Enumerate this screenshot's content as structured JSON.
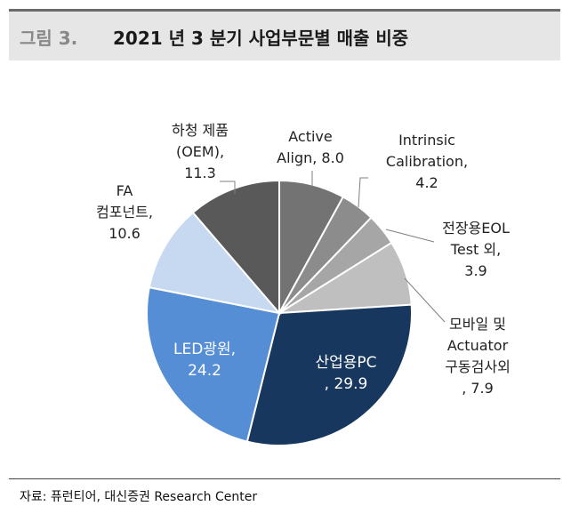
{
  "header": {
    "prefix": "그림 3.",
    "title": "2021 년 3 분기 사업부문별 매출 비중"
  },
  "source": "자료: 퓨런티어, 대신증권 Research Center",
  "chart_data": {
    "type": "pie",
    "title": "2021 년 3 분기 사업부문별 매출 비중",
    "slices": [
      {
        "name": "Active Align",
        "value": 8.0,
        "color": "#737373",
        "lines": [
          "Active",
          "Align, 8.0"
        ]
      },
      {
        "name": "Intrinsic Calibration",
        "value": 4.2,
        "color": "#8c8c8c",
        "lines": [
          "Intrinsic",
          "Calibration,",
          "4.2"
        ]
      },
      {
        "name": "전장용EOL Test 외",
        "value": 3.9,
        "color": "#a6a6a6",
        "lines": [
          "전장용EOL",
          "Test 외,",
          "3.9"
        ]
      },
      {
        "name": "모바일 및 Actuator 구동검사외",
        "value": 7.9,
        "color": "#bfbfbf",
        "lines": [
          "모바일 및",
          "Actuator",
          "구동검사외",
          ", 7.9"
        ]
      },
      {
        "name": "산업용PC",
        "value": 29.9,
        "color": "#17375e",
        "lines": [
          "산업용PC",
          ", 29.9"
        ]
      },
      {
        "name": "LED광원",
        "value": 24.2,
        "color": "#558ed5",
        "lines": [
          "LED광원,",
          "24.2"
        ]
      },
      {
        "name": "FA 컴포넌트",
        "value": 10.6,
        "color": "#c6d9f1",
        "lines": [
          "FA",
          "컴포넌트,",
          "10.6"
        ]
      },
      {
        "name": "하청 제품 (OEM)",
        "value": 11.3,
        "color": "#595959",
        "lines": [
          "하청 제품",
          "(OEM),",
          "11.3"
        ]
      }
    ],
    "start_angle_deg": 0,
    "direction": "clockwise"
  }
}
